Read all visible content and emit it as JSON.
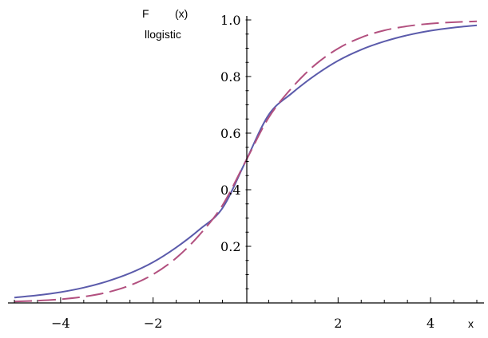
{
  "chart_data": {
    "type": "line",
    "xlim": [
      -5,
      5
    ],
    "ylim": [
      0,
      1
    ],
    "x_ticks": [
      {
        "value": -4,
        "label": "−4"
      },
      {
        "value": -2,
        "label": "−2"
      },
      {
        "value": 2,
        "label": "2"
      },
      {
        "value": 4,
        "label": "4"
      }
    ],
    "y_ticks": [
      {
        "value": 0.2,
        "label": "0.2"
      },
      {
        "value": 0.4,
        "label": "0.4"
      },
      {
        "value": 0.6,
        "label": "0.6"
      },
      {
        "value": 0.8,
        "label": "0.8"
      },
      {
        "value": 1.0,
        "label": "1.0"
      }
    ],
    "xlabel": "x",
    "ylabel": {
      "main": "F",
      "arg": "(x)",
      "subscript": "llogistic"
    },
    "grid": false,
    "legend": "none",
    "series": [
      {
        "style": "solid",
        "color": "#5b5bab",
        "x": [
          -5,
          -4.5,
          -4,
          -3.5,
          -3,
          -2.5,
          -2,
          -1.5,
          -1,
          -0.5,
          0,
          0.5,
          1,
          1.5,
          2,
          2.5,
          3,
          3.5,
          4,
          4.5,
          5
        ],
        "y": [
          0.019,
          0.027,
          0.038,
          0.054,
          0.076,
          0.105,
          0.144,
          0.196,
          0.259,
          0.335,
          0.5,
          0.665,
          0.741,
          0.804,
          0.856,
          0.895,
          0.924,
          0.946,
          0.962,
          0.973,
          0.981
        ]
      },
      {
        "style": "dashed",
        "color": "#b2507f",
        "x": [
          -5,
          -4.5,
          -4,
          -3.5,
          -3,
          -2.5,
          -2,
          -1.5,
          -1,
          -0.5,
          0,
          0.5,
          1,
          1.5,
          2,
          2.5,
          3,
          3.5,
          4,
          4.5,
          5
        ],
        "y": [
          0.005,
          0.008,
          0.013,
          0.022,
          0.037,
          0.062,
          0.101,
          0.159,
          0.24,
          0.345,
          0.5,
          0.655,
          0.76,
          0.841,
          0.899,
          0.938,
          0.963,
          0.978,
          0.987,
          0.992,
          0.995
        ]
      }
    ]
  }
}
